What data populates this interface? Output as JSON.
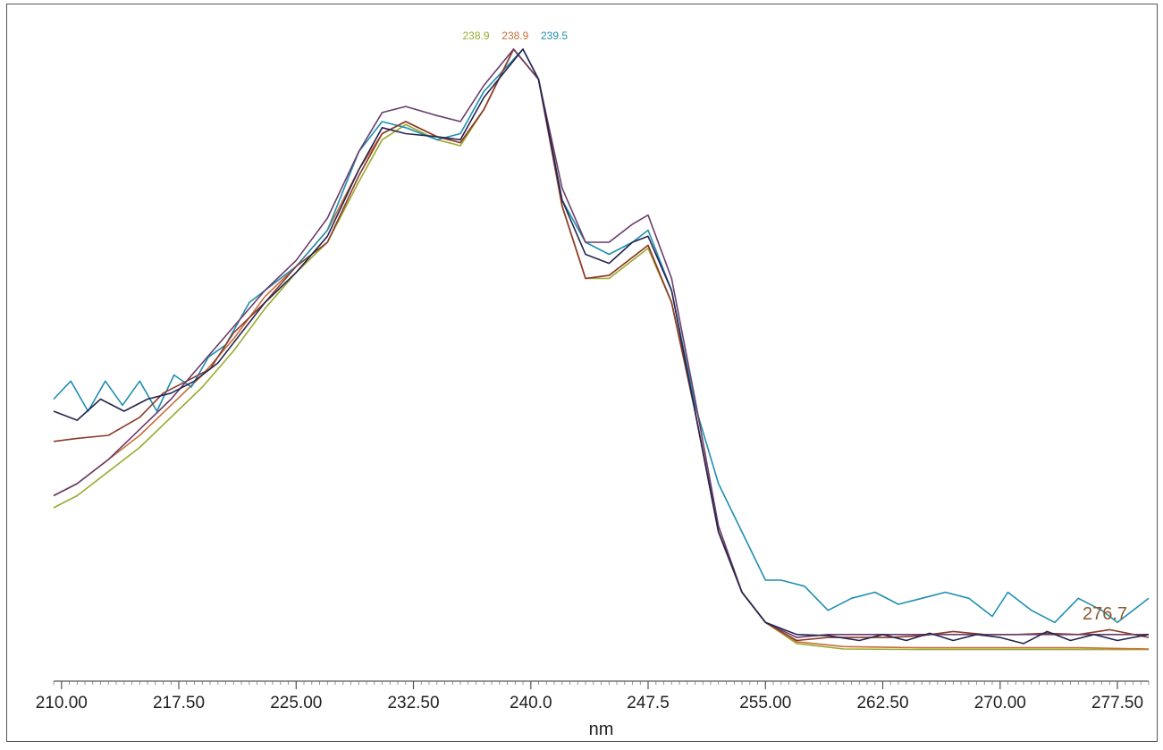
{
  "chart_data": {
    "type": "line",
    "title": "",
    "xlabel": "nm",
    "ylabel": "",
    "xlim": [
      209.5,
      279.5
    ],
    "ylim": [
      0.0,
      1.0
    ],
    "grid": false,
    "legend": "none",
    "x_ticks": [
      {
        "value": 210.0,
        "label": "210.00"
      },
      {
        "value": 217.5,
        "label": "217.50"
      },
      {
        "value": 225.0,
        "label": "225.00"
      },
      {
        "value": 232.5,
        "label": "232.50"
      },
      {
        "value": 240.0,
        "label": "240.0"
      },
      {
        "value": 247.5,
        "label": "247.5"
      },
      {
        "value": 255.0,
        "label": "255.00"
      },
      {
        "value": 262.5,
        "label": "262.50"
      },
      {
        "value": 270.0,
        "label": "270.00"
      },
      {
        "value": 277.5,
        "label": "277.50"
      }
    ],
    "annotations": [
      {
        "text": "238.9",
        "x": 236.5,
        "y": 1.016,
        "color": "#9aaa2e",
        "size": "small"
      },
      {
        "text": "238.9",
        "x": 239.0,
        "y": 1.016,
        "color": "#c86e3a",
        "size": "small"
      },
      {
        "text": "239.5",
        "x": 241.5,
        "y": 1.016,
        "color": "#1f8fb0",
        "size": "small"
      },
      {
        "text": "276.7",
        "x": 276.7,
        "y": 0.055,
        "color": "#8a5a2e",
        "size": "large"
      }
    ],
    "series": [
      {
        "color": "#9aaa2e",
        "x": [
          209.5,
          211,
          213,
          215,
          217,
          219,
          221,
          223,
          225,
          227,
          229,
          230.5,
          232,
          234,
          235.5,
          237,
          238.9,
          240.5,
          242,
          243.5,
          245,
          246.5,
          247.5,
          249,
          250.5,
          252,
          253.5,
          255,
          257,
          260,
          265,
          270,
          275,
          279.5
        ],
        "y": [
          0.24,
          0.26,
          0.3,
          0.34,
          0.39,
          0.44,
          0.5,
          0.57,
          0.63,
          0.68,
          0.78,
          0.85,
          0.875,
          0.85,
          0.84,
          0.9,
          1.0,
          0.95,
          0.74,
          0.62,
          0.62,
          0.65,
          0.67,
          0.58,
          0.4,
          0.2,
          0.1,
          0.05,
          0.015,
          0.006,
          0.005,
          0.005,
          0.005,
          0.005
        ]
      },
      {
        "color": "#c86e3a",
        "x": [
          209.5,
          211,
          213,
          215,
          217,
          219,
          221,
          223,
          225,
          227,
          229,
          230.5,
          232,
          234,
          235.5,
          237,
          238.9,
          240.5,
          242,
          243.5,
          245,
          246.5,
          247.5,
          249,
          250.5,
          252,
          253.5,
          255,
          257,
          260,
          265,
          270,
          275,
          279.5
        ],
        "y": [
          0.26,
          0.28,
          0.32,
          0.36,
          0.41,
          0.46,
          0.52,
          0.59,
          0.64,
          0.7,
          0.8,
          0.86,
          0.88,
          0.855,
          0.845,
          0.9,
          1.0,
          0.95,
          0.74,
          0.62,
          0.625,
          0.655,
          0.675,
          0.58,
          0.4,
          0.2,
          0.1,
          0.05,
          0.018,
          0.01,
          0.008,
          0.008,
          0.008,
          0.006
        ]
      },
      {
        "color": "#1f8fb0",
        "x": [
          209.5,
          210.6,
          211.7,
          212.8,
          213.9,
          215,
          216.1,
          217.2,
          218.3,
          219.4,
          220.5,
          222,
          223.5,
          225,
          227,
          229,
          230.5,
          232,
          234,
          235.5,
          237,
          239.5,
          240.5,
          242,
          243.5,
          245,
          246.5,
          247.5,
          249,
          250.5,
          252,
          253.5,
          255,
          256,
          257.5,
          259,
          260.5,
          262,
          263.5,
          265,
          266.5,
          268,
          269.5,
          270.5,
          272,
          273.5,
          275,
          276.5,
          277.5,
          278.5,
          279.5
        ],
        "y": [
          0.42,
          0.45,
          0.4,
          0.45,
          0.41,
          0.45,
          0.4,
          0.46,
          0.44,
          0.49,
          0.51,
          0.58,
          0.61,
          0.64,
          0.7,
          0.83,
          0.88,
          0.87,
          0.85,
          0.86,
          0.93,
          1.0,
          0.95,
          0.75,
          0.68,
          0.66,
          0.68,
          0.7,
          0.6,
          0.41,
          0.28,
          0.2,
          0.12,
          0.12,
          0.11,
          0.07,
          0.09,
          0.1,
          0.08,
          0.09,
          0.1,
          0.09,
          0.06,
          0.1,
          0.07,
          0.05,
          0.09,
          0.07,
          0.05,
          0.07,
          0.09
        ]
      },
      {
        "color": "#8a3a2a",
        "x": [
          209.5,
          211,
          213,
          215,
          216.5,
          218,
          219.5,
          221,
          223,
          225,
          227,
          229,
          230.5,
          232,
          234,
          235.5,
          237,
          238.9,
          240.5,
          242,
          243.5,
          245,
          246.5,
          247.5,
          249,
          250.5,
          252,
          253.5,
          255,
          257,
          259,
          261,
          263,
          265,
          267,
          269,
          271,
          273,
          275,
          277,
          279.5
        ],
        "y": [
          0.35,
          0.355,
          0.36,
          0.39,
          0.43,
          0.45,
          0.47,
          0.53,
          0.58,
          0.64,
          0.68,
          0.79,
          0.86,
          0.88,
          0.855,
          0.845,
          0.9,
          1.0,
          0.95,
          0.74,
          0.62,
          0.625,
          0.655,
          0.675,
          0.58,
          0.4,
          0.2,
          0.1,
          0.05,
          0.02,
          0.025,
          0.025,
          0.025,
          0.028,
          0.035,
          0.03,
          0.03,
          0.032,
          0.03,
          0.038,
          0.025
        ]
      },
      {
        "color": "#6a3c6a",
        "x": [
          209.5,
          211,
          213,
          215,
          217,
          219,
          221,
          223,
          225,
          227,
          229,
          230.5,
          232,
          234,
          235.5,
          237,
          238.9,
          240.5,
          242,
          243.5,
          245,
          246.5,
          247.5,
          249,
          250.5,
          252,
          253.5,
          255,
          257,
          259,
          261,
          263,
          265,
          267,
          269,
          271,
          273,
          275,
          277,
          279.5
        ],
        "y": [
          0.26,
          0.28,
          0.32,
          0.37,
          0.42,
          0.48,
          0.54,
          0.6,
          0.65,
          0.72,
          0.83,
          0.895,
          0.905,
          0.89,
          0.88,
          0.94,
          1.0,
          0.95,
          0.77,
          0.68,
          0.68,
          0.71,
          0.725,
          0.62,
          0.42,
          0.21,
          0.1,
          0.05,
          0.025,
          0.03,
          0.03,
          0.03,
          0.03,
          0.03,
          0.03,
          0.03,
          0.03,
          0.03,
          0.03,
          0.03
        ]
      },
      {
        "color": "#252550",
        "x": [
          209.5,
          211,
          212.5,
          214,
          215.5,
          217,
          218.5,
          220,
          221.5,
          223,
          225,
          227,
          229,
          230.5,
          232,
          234,
          235.5,
          237,
          239.5,
          240.5,
          242,
          243.5,
          245,
          246.5,
          247.5,
          249,
          250.5,
          252,
          253.5,
          255,
          257,
          259,
          261,
          262.5,
          264,
          265.5,
          267,
          268.5,
          270,
          271.5,
          273,
          274.5,
          276,
          277.5,
          279.5
        ],
        "y": [
          0.4,
          0.385,
          0.42,
          0.4,
          0.42,
          0.43,
          0.45,
          0.48,
          0.53,
          0.58,
          0.63,
          0.69,
          0.8,
          0.87,
          0.86,
          0.855,
          0.85,
          0.92,
          1.0,
          0.95,
          0.75,
          0.66,
          0.645,
          0.68,
          0.69,
          0.6,
          0.4,
          0.2,
          0.1,
          0.05,
          0.03,
          0.028,
          0.02,
          0.03,
          0.02,
          0.032,
          0.02,
          0.03,
          0.025,
          0.015,
          0.035,
          0.02,
          0.03,
          0.02,
          0.03
        ]
      }
    ]
  }
}
